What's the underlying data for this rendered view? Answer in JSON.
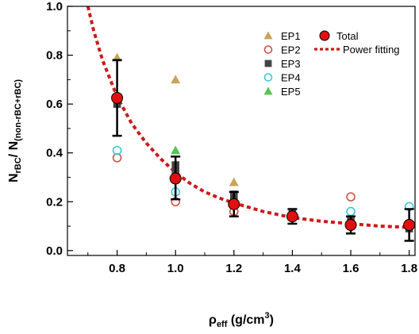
{
  "chart_data": {
    "type": "scatter",
    "xlabel": {
      "main": "ρ",
      "sub": "eff",
      "rest": " (g/cm",
      "sup": "3",
      "end": ")"
    },
    "ylabel": {
      "p1": "N",
      "s1": "rBC",
      "p2": "/ N",
      "s2": "(non-rBC+rBC)"
    },
    "xlim": [
      0.63,
      1.82
    ],
    "ylim": [
      -0.02,
      1.0
    ],
    "x_ticks": [
      "0.8",
      "1.0",
      "1.2",
      "1.4",
      "1.6",
      "1.8"
    ],
    "x_tick_values": [
      0.8,
      1.0,
      1.2,
      1.4,
      1.6,
      1.8
    ],
    "y_ticks": [
      "0.0",
      "0.2",
      "0.4",
      "0.6",
      "0.8",
      "1.0"
    ],
    "y_tick_values": [
      0.0,
      0.2,
      0.4,
      0.6,
      0.8,
      1.0
    ],
    "legend_placement": "top-right",
    "series": [
      {
        "name": "EP1",
        "marker": "triangle",
        "color": "#c8a45a",
        "points": [
          [
            0.8,
            0.79
          ],
          [
            1.0,
            0.7
          ],
          [
            1.2,
            0.28
          ]
        ]
      },
      {
        "name": "EP2",
        "marker": "open-circle",
        "color": "#d0504a",
        "points": [
          [
            0.8,
            0.38
          ],
          [
            1.0,
            0.2
          ],
          [
            1.2,
            0.16
          ],
          [
            1.6,
            0.22
          ],
          [
            1.8,
            0.1
          ]
        ]
      },
      {
        "name": "EP3",
        "marker": "square",
        "color": "#444444",
        "points": [
          [
            0.8,
            0.6
          ],
          [
            1.0,
            0.35
          ],
          [
            1.0,
            0.32
          ],
          [
            1.2,
            0.23
          ],
          [
            1.2,
            0.2
          ],
          [
            1.4,
            0.15
          ],
          [
            1.6,
            0.12
          ],
          [
            1.8,
            0.09
          ]
        ]
      },
      {
        "name": "EP4",
        "marker": "open-circle",
        "color": "#3cc8dc",
        "points": [
          [
            0.8,
            0.41
          ],
          [
            1.0,
            0.24
          ],
          [
            1.2,
            0.19
          ],
          [
            1.4,
            0.14
          ],
          [
            1.6,
            0.16
          ],
          [
            1.8,
            0.18
          ]
        ]
      },
      {
        "name": "EP5",
        "marker": "triangle",
        "color": "#55c455",
        "points": [
          [
            1.0,
            0.41
          ]
        ]
      }
    ],
    "total": {
      "name": "Total",
      "color": "#e01010",
      "points": [
        {
          "x": 0.8,
          "y": 0.625,
          "low": 0.47,
          "high": 0.78
        },
        {
          "x": 1.0,
          "y": 0.295,
          "low": 0.21,
          "high": 0.385
        },
        {
          "x": 1.2,
          "y": 0.19,
          "low": 0.14,
          "high": 0.24
        },
        {
          "x": 1.4,
          "y": 0.14,
          "low": 0.11,
          "high": 0.17
        },
        {
          "x": 1.6,
          "y": 0.105,
          "low": 0.07,
          "high": 0.14
        },
        {
          "x": 1.8,
          "y": 0.105,
          "low": 0.04,
          "high": 0.17
        }
      ]
    },
    "fit": {
      "name": "Power fitting",
      "color": "#cc1a1a",
      "x": [
        0.7,
        0.72,
        0.75,
        0.78,
        0.8,
        0.85,
        0.9,
        0.95,
        1.0,
        1.05,
        1.1,
        1.15,
        1.2,
        1.3,
        1.4,
        1.5,
        1.6,
        1.7,
        1.8
      ],
      "y": [
        1.0,
        0.9,
        0.78,
        0.69,
        0.63,
        0.52,
        0.44,
        0.375,
        0.32,
        0.275,
        0.24,
        0.215,
        0.195,
        0.16,
        0.135,
        0.12,
        0.11,
        0.1,
        0.095
      ]
    }
  }
}
